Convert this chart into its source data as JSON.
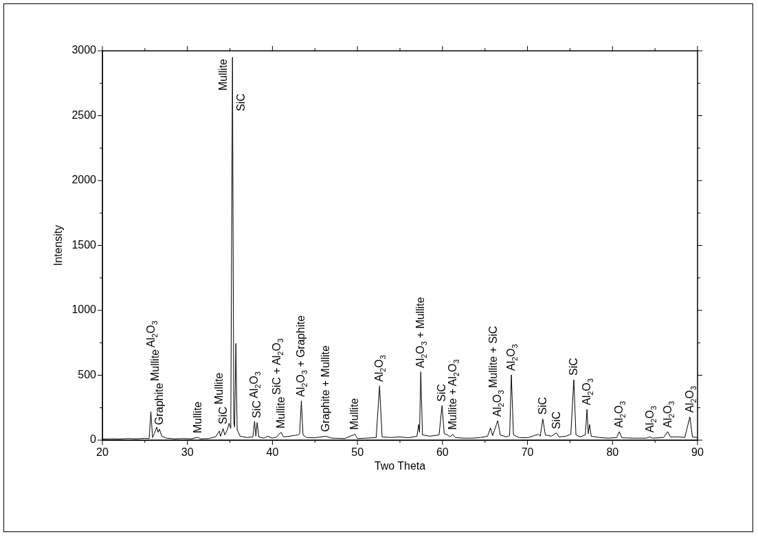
{
  "chart_data": {
    "type": "line",
    "xlabel": "Two Theta",
    "ylabel": "Intensity",
    "xlim": [
      20,
      90
    ],
    "ylim": [
      0,
      3000
    ],
    "xticks": [
      20,
      {
        "value": 25,
        "label": null
      },
      30,
      {
        "value": 35,
        "label": null
      },
      40,
      {
        "value": 45,
        "label": null
      },
      50,
      {
        "value": 55,
        "label": null
      },
      60,
      {
        "value": 65,
        "label": null
      },
      70,
      {
        "value": 75,
        "label": null
      },
      80,
      {
        "value": 85,
        "label": null
      },
      90
    ],
    "yticks": [
      0,
      {
        "value": 250,
        "label": null
      },
      500,
      {
        "value": 750,
        "label": null
      },
      1000,
      {
        "value": 1250,
        "label": null
      },
      1500,
      {
        "value": 1750,
        "label": null
      },
      2000,
      {
        "value": 2250,
        "label": null
      },
      2500,
      {
        "value": 2750,
        "label": null
      },
      3000
    ],
    "grid": false,
    "legend": false,
    "marker": "none",
    "line_style": "solid",
    "series": [
      {
        "color": "#000000",
        "x": [
          20,
          21,
          22,
          23,
          24,
          25,
          25.5,
          25.7,
          25.9,
          26.1,
          26.4,
          26.55,
          26.7,
          27,
          27.5,
          28.5,
          29.5,
          30.5,
          31.2,
          31.5,
          32.5,
          33.3,
          33.75,
          33.9,
          34.2,
          34.4,
          34.7,
          34.9,
          35.1,
          35.3,
          35.45,
          35.55,
          35.7,
          35.85,
          36.2,
          37,
          37.7,
          37.9,
          38.05,
          38.2,
          38.4,
          39,
          39.4,
          40,
          40.5,
          41,
          41.3,
          42,
          42.5,
          43,
          43.2,
          43.4,
          43.6,
          44,
          45,
          46.25,
          47,
          48.5,
          49.7,
          50,
          51,
          52.2,
          52.6,
          52.9,
          54,
          55,
          56,
          57,
          57.2,
          57.3,
          57.45,
          57.65,
          58.5,
          59.6,
          59.95,
          60.2,
          60.6,
          60.9,
          61.2,
          61.5,
          62.5,
          63.5,
          64.5,
          65.3,
          65.65,
          65.9,
          66.5,
          66.8,
          67.5,
          67.9,
          68.1,
          68.35,
          69,
          70,
          70.8,
          71.3,
          71.5,
          71.8,
          72.1,
          72.8,
          73.4,
          73.7,
          74.5,
          75.1,
          75.45,
          75.7,
          76.2,
          76.8,
          77,
          77.15,
          77.3,
          77.5,
          78.5,
          79.5,
          80.5,
          80.8,
          81.1,
          82.5,
          84,
          84.4,
          84.7,
          86,
          86.5,
          86.8,
          87.8,
          88.5,
          89.1,
          89.4,
          90
        ],
        "values": [
          8,
          10,
          9,
          12,
          10,
          14,
          12,
          219,
          20,
          50,
          100,
          60,
          85,
          30,
          15,
          10,
          12,
          10,
          22,
          10,
          12,
          25,
          70,
          30,
          90,
          40,
          80,
          130,
          90,
          2950,
          150,
          100,
          745,
          80,
          30,
          20,
          25,
          145,
          30,
          135,
          25,
          15,
          30,
          15,
          25,
          60,
          25,
          30,
          35,
          40,
          50,
          303,
          40,
          20,
          18,
          30,
          15,
          12,
          45,
          12,
          15,
          20,
          418,
          25,
          20,
          25,
          18,
          30,
          120,
          60,
          526,
          40,
          30,
          40,
          267,
          50,
          40,
          25,
          45,
          20,
          15,
          15,
          20,
          30,
          95,
          35,
          150,
          40,
          25,
          35,
          503,
          40,
          20,
          18,
          35,
          45,
          30,
          163,
          40,
          30,
          55,
          25,
          30,
          45,
          465,
          40,
          25,
          40,
          237,
          50,
          120,
          30,
          20,
          15,
          20,
          65,
          18,
          15,
          15,
          25,
          15,
          20,
          65,
          25,
          25,
          20,
          179,
          25,
          20
        ]
      }
    ],
    "annotations": [
      {
        "text": "Graphite",
        "x": 26.7,
        "y": 85
      },
      "Mullite",
      "Al$_{2}$O$_{3}$",
      {
        "text": "Mullite",
        "x": 31.2,
        "y": 22
      },
      {
        "text": "SiC",
        "x": 34.2,
        "y": 90
      },
      "Mullite",
      {
        "text": "Mullite",
        "x": 35.3,
        "y": 2950
      },
      "SiC",
      {
        "text": "SiC",
        "x": 38.2,
        "y": 135
      },
      {
        "text": "Al$_{2}$O$_{3}$",
        "x": 37.9,
        "y": 145
      },
      {
        "text": "Mullite",
        "x": 41,
        "y": 60
      },
      "SiC + Al$_{2}$O$_{3}$",
      {
        "text": "Al$_{2}$O$_{3}$ + Graphite",
        "x": 43.4,
        "y": 303
      },
      {
        "text": "Graphite + Mullite",
        "x": 46.25,
        "y": 30
      },
      {
        "text": "Mullite",
        "x": 49.7,
        "y": 45
      },
      {
        "text": "Al$_{2}$O$_{3}$",
        "x": 52.6,
        "y": 418
      },
      {
        "text": "Al$_{2}$O$_{3}$ + Mullite",
        "x": 57.45,
        "y": 526
      },
      {
        "text": "SiC",
        "x": 59.95,
        "y": 267
      },
      {
        "text": "Mullite + Al$_{2}$O$_{3}$",
        "x": 61.2,
        "y": 45
      },
      {
        "text": "Al$_{2}$O$_{3}$",
        "x": 66.5,
        "y": 150
      },
      "Mullite + SiC",
      {
        "text": "Al$_{2}$O$_{3}$",
        "x": 68.1,
        "y": 503
      },
      {
        "text": "SiC",
        "x": 71.8,
        "y": 163
      },
      {
        "text": "SiC",
        "x": 73.4,
        "y": 55
      },
      {
        "text": "SiC",
        "x": 75.45,
        "y": 465
      },
      {
        "text": "Al$_{2}$O$_{3}$",
        "x": 77,
        "y": 237
      },
      {
        "text": "Al$_{2}$O$_{3}$",
        "x": 80.8,
        "y": 65
      },
      {
        "text": "Al$_{2}$O$_{3}$",
        "x": 84.4,
        "y": 25
      },
      {
        "text": "Al$_{2}$O$_{3}$",
        "x": 86.5,
        "y": 65
      },
      {
        "text": "Al$_{2}$O$_{3}$",
        "x": 89.1,
        "y": 179
      }
    ]
  }
}
